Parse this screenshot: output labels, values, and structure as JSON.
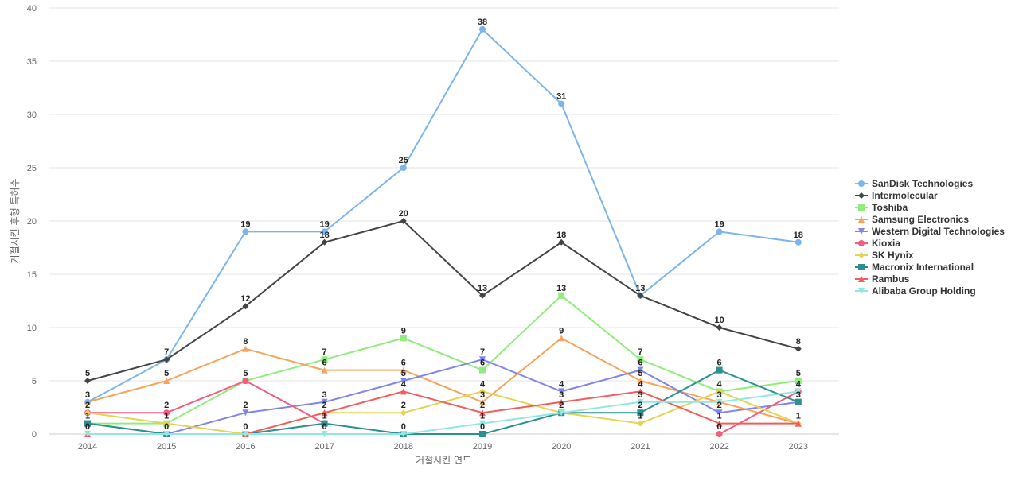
{
  "chart_data": {
    "type": "line",
    "xlabel": "거절시킨 연도",
    "ylabel": "거절시킨 후행 특허수",
    "ylim": [
      0,
      40
    ],
    "yticks": [
      0,
      5,
      10,
      15,
      20,
      25,
      30,
      35,
      40
    ],
    "grid": true,
    "legend_position": "right",
    "categories": [
      "2014",
      "2015",
      "2016",
      "2017",
      "2018",
      "2019",
      "2020",
      "2021",
      "2022",
      "2023"
    ],
    "series": [
      {
        "name": "SanDisk Technologies",
        "color": "#7cb5ec",
        "marker": "circle",
        "values": [
          3,
          7,
          19,
          19,
          25,
          38,
          31,
          13,
          19,
          18
        ]
      },
      {
        "name": "Intermolecular",
        "color": "#434348",
        "marker": "diamond",
        "values": [
          5,
          7,
          12,
          18,
          20,
          13,
          18,
          13,
          10,
          8
        ]
      },
      {
        "name": "Toshiba",
        "color": "#90ed7d",
        "marker": "square",
        "values": [
          1,
          1,
          5,
          7,
          9,
          6,
          13,
          7,
          4,
          5
        ]
      },
      {
        "name": "Samsung Electronics",
        "color": "#f7a35c",
        "marker": "triangle",
        "values": [
          3,
          5,
          8,
          6,
          6,
          3,
          9,
          5,
          3,
          1
        ]
      },
      {
        "name": "Western Digital Technologies",
        "color": "#8085e9",
        "marker": "triangle-down",
        "values": [
          1,
          0,
          2,
          3,
          5,
          7,
          4,
          6,
          2,
          3
        ]
      },
      {
        "name": "Kioxia",
        "color": "#f15c80",
        "marker": "circle",
        "values": [
          2,
          2,
          5,
          1,
          null,
          null,
          null,
          null,
          0,
          4
        ]
      },
      {
        "name": "SK Hynix",
        "color": "#e4d354",
        "marker": "diamond",
        "values": [
          2,
          1,
          0,
          2,
          2,
          4,
          2,
          1,
          4,
          1
        ]
      },
      {
        "name": "Macronix International",
        "color": "#2b908f",
        "marker": "square",
        "values": [
          1,
          0,
          0,
          1,
          0,
          0,
          2,
          2,
          6,
          3
        ]
      },
      {
        "name": "Rambus",
        "color": "#f45b5b",
        "marker": "triangle",
        "values": [
          0,
          null,
          0,
          2,
          4,
          2,
          3,
          4,
          1,
          1
        ]
      },
      {
        "name": "Alibaba Group Holding",
        "color": "#91e8e1",
        "marker": "triangle-down",
        "values": [
          0,
          0,
          0,
          0,
          0,
          1,
          2,
          3,
          3,
          4
        ]
      }
    ],
    "data_labels": [
      {
        "x": "2014",
        "text": "5",
        "v": 5
      },
      {
        "x": "2014",
        "text": "3",
        "v": 3
      },
      {
        "x": "2014",
        "text": "2",
        "v": 2
      },
      {
        "x": "2014",
        "text": "1",
        "v": 1
      },
      {
        "x": "2014",
        "text": "0",
        "v": 0
      },
      {
        "x": "2015",
        "text": "7",
        "v": 7
      },
      {
        "x": "2015",
        "text": "5",
        "v": 5
      },
      {
        "x": "2015",
        "text": "2",
        "v": 2
      },
      {
        "x": "2015",
        "text": "1",
        "v": 1
      },
      {
        "x": "2015",
        "text": "0",
        "v": 0
      },
      {
        "x": "2016",
        "text": "19",
        "v": 19
      },
      {
        "x": "2016",
        "text": "12",
        "v": 12
      },
      {
        "x": "2016",
        "text": "8",
        "v": 8
      },
      {
        "x": "2016",
        "text": "5",
        "v": 5
      },
      {
        "x": "2016",
        "text": "2",
        "v": 2
      },
      {
        "x": "2016",
        "text": "0",
        "v": 0
      },
      {
        "x": "2017",
        "text": "19",
        "v": 19
      },
      {
        "x": "2017",
        "text": "18",
        "v": 18
      },
      {
        "x": "2017",
        "text": "7",
        "v": 7
      },
      {
        "x": "2017",
        "text": "6",
        "v": 6
      },
      {
        "x": "2017",
        "text": "3",
        "v": 3
      },
      {
        "x": "2017",
        "text": "2",
        "v": 2
      },
      {
        "x": "2017",
        "text": "1",
        "v": 1
      },
      {
        "x": "2017",
        "text": "0",
        "v": 0
      },
      {
        "x": "2018",
        "text": "25",
        "v": 25
      },
      {
        "x": "2018",
        "text": "20",
        "v": 20
      },
      {
        "x": "2018",
        "text": "9",
        "v": 9
      },
      {
        "x": "2018",
        "text": "6",
        "v": 6
      },
      {
        "x": "2018",
        "text": "5",
        "v": 5
      },
      {
        "x": "2018",
        "text": "4",
        "v": 4
      },
      {
        "x": "2018",
        "text": "2",
        "v": 2
      },
      {
        "x": "2018",
        "text": "0",
        "v": 0
      },
      {
        "x": "2019",
        "text": "38",
        "v": 38
      },
      {
        "x": "2019",
        "text": "13",
        "v": 13
      },
      {
        "x": "2019",
        "text": "7",
        "v": 7
      },
      {
        "x": "2019",
        "text": "6",
        "v": 6
      },
      {
        "x": "2019",
        "text": "4",
        "v": 4
      },
      {
        "x": "2019",
        "text": "3",
        "v": 3
      },
      {
        "x": "2019",
        "text": "2",
        "v": 2
      },
      {
        "x": "2019",
        "text": "1",
        "v": 1
      },
      {
        "x": "2019",
        "text": "0",
        "v": 0
      },
      {
        "x": "2020",
        "text": "31",
        "v": 31
      },
      {
        "x": "2020",
        "text": "18",
        "v": 18
      },
      {
        "x": "2020",
        "text": "13",
        "v": 13
      },
      {
        "x": "2020",
        "text": "9",
        "v": 9
      },
      {
        "x": "2020",
        "text": "4",
        "v": 4
      },
      {
        "x": "2020",
        "text": "3",
        "v": 3
      },
      {
        "x": "2020",
        "text": "2",
        "v": 2
      },
      {
        "x": "2021",
        "text": "13",
        "v": 13
      },
      {
        "x": "2021",
        "text": "7",
        "v": 7
      },
      {
        "x": "2021",
        "text": "6",
        "v": 6
      },
      {
        "x": "2021",
        "text": "5",
        "v": 5
      },
      {
        "x": "2021",
        "text": "4",
        "v": 4
      },
      {
        "x": "2021",
        "text": "3",
        "v": 3
      },
      {
        "x": "2021",
        "text": "2",
        "v": 2
      },
      {
        "x": "2021",
        "text": "1",
        "v": 1
      },
      {
        "x": "2022",
        "text": "19",
        "v": 19
      },
      {
        "x": "2022",
        "text": "10",
        "v": 10
      },
      {
        "x": "2022",
        "text": "6",
        "v": 6
      },
      {
        "x": "2022",
        "text": "4",
        "v": 4
      },
      {
        "x": "2022",
        "text": "3",
        "v": 3
      },
      {
        "x": "2022",
        "text": "2",
        "v": 2
      },
      {
        "x": "2022",
        "text": "1",
        "v": 1
      },
      {
        "x": "2022",
        "text": "0",
        "v": 0
      },
      {
        "x": "2023",
        "text": "18",
        "v": 18
      },
      {
        "x": "2023",
        "text": "8",
        "v": 8
      },
      {
        "x": "2023",
        "text": "5",
        "v": 5
      },
      {
        "x": "2023",
        "text": "4",
        "v": 4
      },
      {
        "x": "2023",
        "text": "3",
        "v": 3
      },
      {
        "x": "2023",
        "text": "1",
        "v": 1
      }
    ]
  }
}
